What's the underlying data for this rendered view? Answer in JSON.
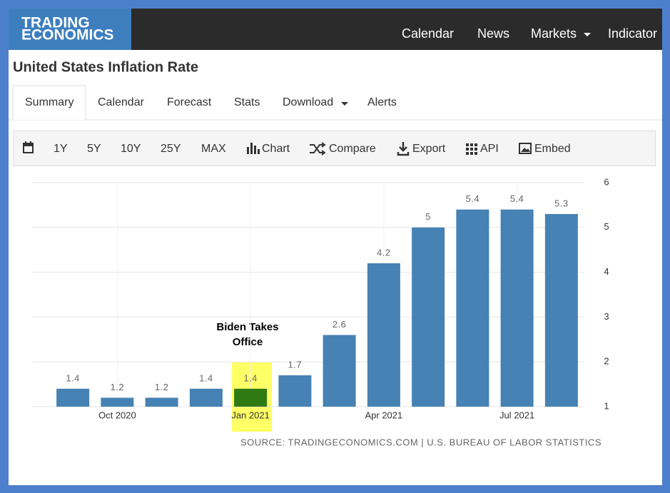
{
  "header": {
    "logo": [
      "TRADING",
      "ECONOMICS"
    ],
    "nav": [
      "Calendar",
      "News",
      "Markets",
      "Indicator"
    ]
  },
  "page_title": "United States Inflation Rate",
  "tabs": [
    "Summary",
    "Calendar",
    "Forecast",
    "Stats",
    "Download",
    "Alerts"
  ],
  "toolbar": [
    "1Y",
    "5Y",
    "10Y",
    "25Y",
    "MAX",
    "Chart",
    "Compare",
    "Export",
    "API",
    "Embed"
  ],
  "chart_data": {
    "type": "bar",
    "categories": [
      null,
      "Oct 2020",
      null,
      null,
      "Jan 2021",
      null,
      null,
      "Apr 2021",
      null,
      null,
      "Jul 2021",
      null
    ],
    "values": [
      1.4,
      1.2,
      1.2,
      1.4,
      1.4,
      1.7,
      2.6,
      4.2,
      5,
      5.4,
      5.4,
      5.3
    ],
    "colors": [
      "#4682b4",
      "#4682b4",
      "#4682b4",
      "#4682b4",
      "#2f7a12",
      "#4682b4",
      "#4682b4",
      "#4682b4",
      "#4682b4",
      "#4682b4",
      "#4682b4",
      "#4682b4"
    ],
    "ylim": [
      1,
      6
    ],
    "yticks": [
      1,
      2,
      3,
      4,
      5,
      6
    ],
    "grid": true,
    "annotation": [
      "Biden Takes",
      "Office"
    ],
    "source": "SOURCE: TRADINGECONOMICS.COM | U.S. BUREAU OF LABOR STATISTICS"
  }
}
